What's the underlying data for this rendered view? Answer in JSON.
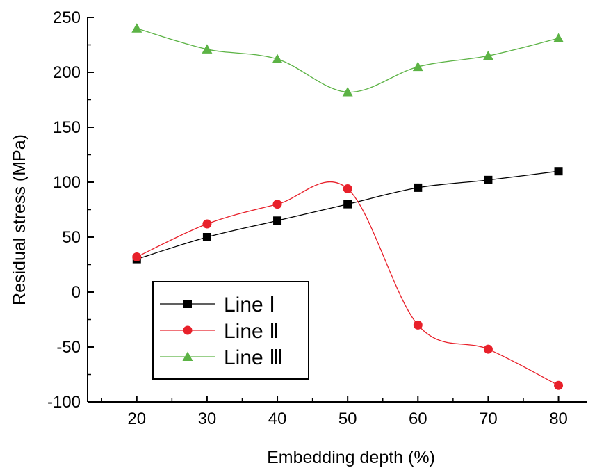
{
  "chart_data": {
    "type": "line",
    "xlabel": "Embedding depth (%)",
    "ylabel": "Residual stress (MPa)",
    "xlim": [
      13,
      84
    ],
    "ylim": [
      -100,
      250
    ],
    "x_ticks": [
      20,
      30,
      40,
      50,
      60,
      70,
      80
    ],
    "y_ticks": [
      -100,
      -50,
      0,
      50,
      100,
      150,
      200,
      250
    ],
    "x": [
      20,
      30,
      40,
      50,
      60,
      70,
      80
    ],
    "grid": false,
    "legend_position": "bottom-left",
    "series": [
      {
        "name": "Line",
        "numeral": "Ⅰ",
        "marker": "square",
        "color": "#000000",
        "values": [
          30,
          50,
          65,
          80,
          95,
          102,
          110
        ]
      },
      {
        "name": "Line",
        "numeral": "Ⅱ",
        "marker": "circle",
        "color": "#e8202a",
        "values": [
          32,
          62,
          80,
          94,
          -30,
          -52,
          -85
        ]
      },
      {
        "name": "Line",
        "numeral": "Ⅲ",
        "marker": "triangle",
        "color": "#5cb345",
        "values": [
          240,
          221,
          212,
          182,
          205,
          215,
          231
        ]
      }
    ]
  }
}
